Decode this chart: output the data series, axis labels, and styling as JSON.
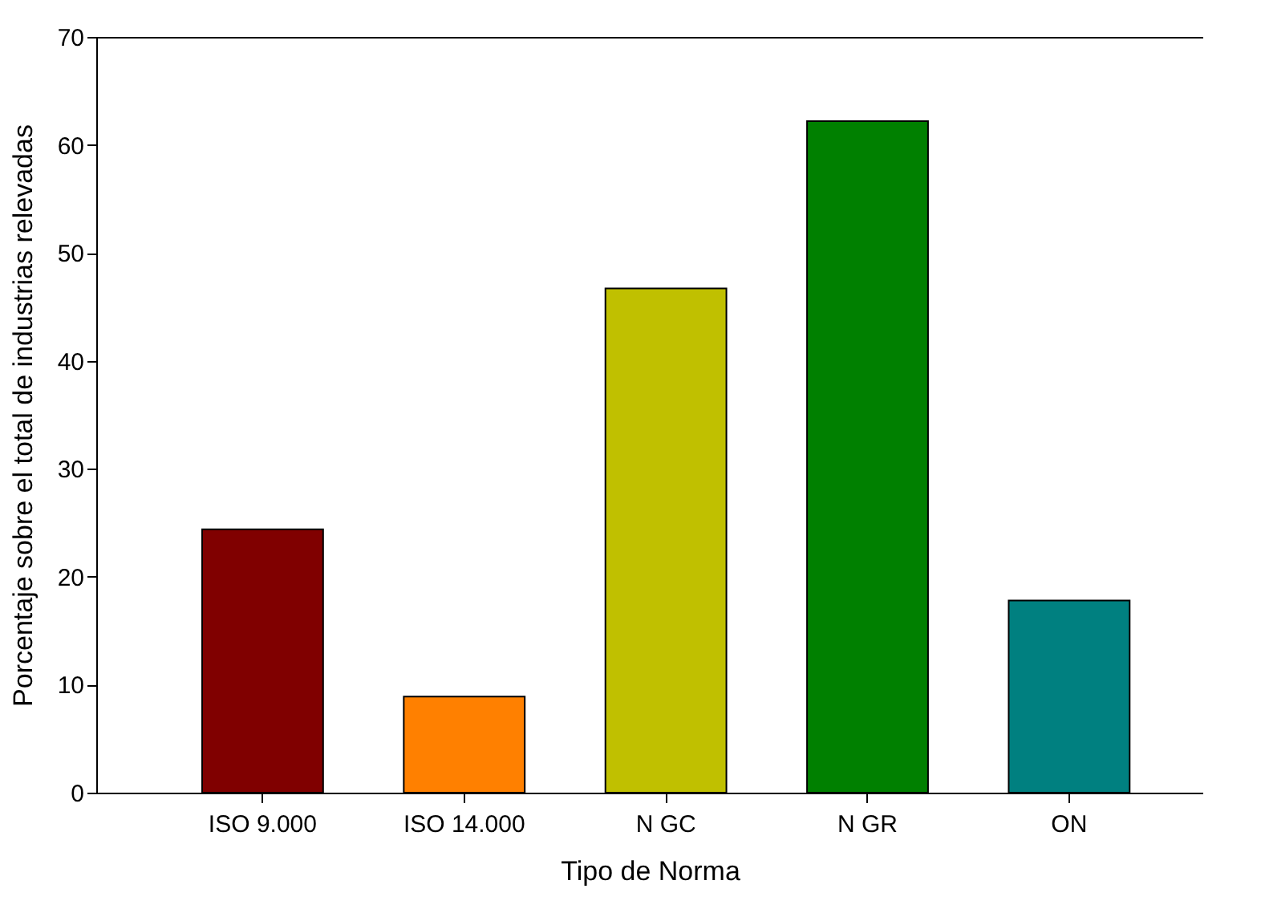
{
  "chart_data": {
    "type": "bar",
    "xlabel": "Tipo de Norma",
    "ylabel": "Porcentaje sobre el total de industrias relevadas",
    "categories": [
      "ISO 9.000",
      "ISO 14.000",
      "N GC",
      "N GR",
      "ON"
    ],
    "values": [
      24.4,
      8.9,
      46.7,
      62.2,
      17.8
    ],
    "colors": [
      "#800000",
      "#ff8000",
      "#c0c000",
      "#008000",
      "#008080"
    ],
    "ylim": [
      0,
      70
    ],
    "yticks": [
      0,
      10,
      20,
      30,
      40,
      50,
      60,
      70
    ],
    "grid": false,
    "legend": false
  }
}
